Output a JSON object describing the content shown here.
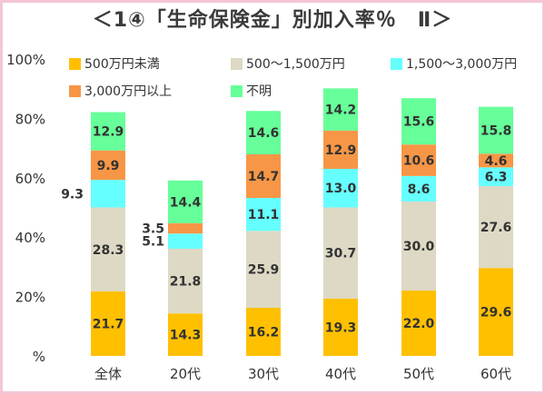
{
  "chart_data": {
    "type": "bar",
    "stacked": true,
    "title": "＜1④「生命保険金」別加入率％　Ⅱ＞",
    "categories": [
      "全体",
      "20代",
      "30代",
      "40代",
      "50代",
      "60代"
    ],
    "series": [
      {
        "name": "500万円未満",
        "color": "#ffc000",
        "values": [
          21.7,
          14.3,
          16.2,
          19.3,
          22.0,
          29.6
        ]
      },
      {
        "name": "500～1,500万円",
        "color": "#ddd9c4",
        "values": [
          28.3,
          21.8,
          25.9,
          30.7,
          30.0,
          27.6
        ]
      },
      {
        "name": "1,500～3,000万円",
        "color": "#66ffff",
        "values": [
          9.3,
          5.1,
          11.1,
          13.0,
          8.6,
          6.3
        ]
      },
      {
        "name": "3,000万円以上",
        "color": "#f79646",
        "values": [
          9.9,
          3.5,
          14.7,
          12.9,
          10.6,
          4.6
        ]
      },
      {
        "name": "不明",
        "color": "#66ff99",
        "values": [
          12.9,
          14.4,
          14.6,
          14.2,
          15.6,
          15.8
        ]
      }
    ],
    "data_labels": [
      [
        "21.7",
        "14.3",
        "16.2",
        "19.3",
        "22.0",
        "29.6"
      ],
      [
        "28.3",
        "21.8",
        "25.9",
        "30.7",
        "30.0",
        "27.6"
      ],
      [
        "9.3",
        "5.1",
        "11.1",
        "13.0",
        "8.6",
        "6.3"
      ],
      [
        "9.9",
        "3.5",
        "14.7",
        "12.9",
        "10.6",
        "4.6"
      ],
      [
        "12.9",
        "14.4",
        "14.6",
        "14.2",
        "15.6",
        "15.8"
      ]
    ],
    "yticks": [
      "%",
      "20%",
      "40%",
      "60%",
      "80%",
      "100%"
    ],
    "ylim": [
      0,
      100
    ],
    "grid": false,
    "legend": "top"
  }
}
